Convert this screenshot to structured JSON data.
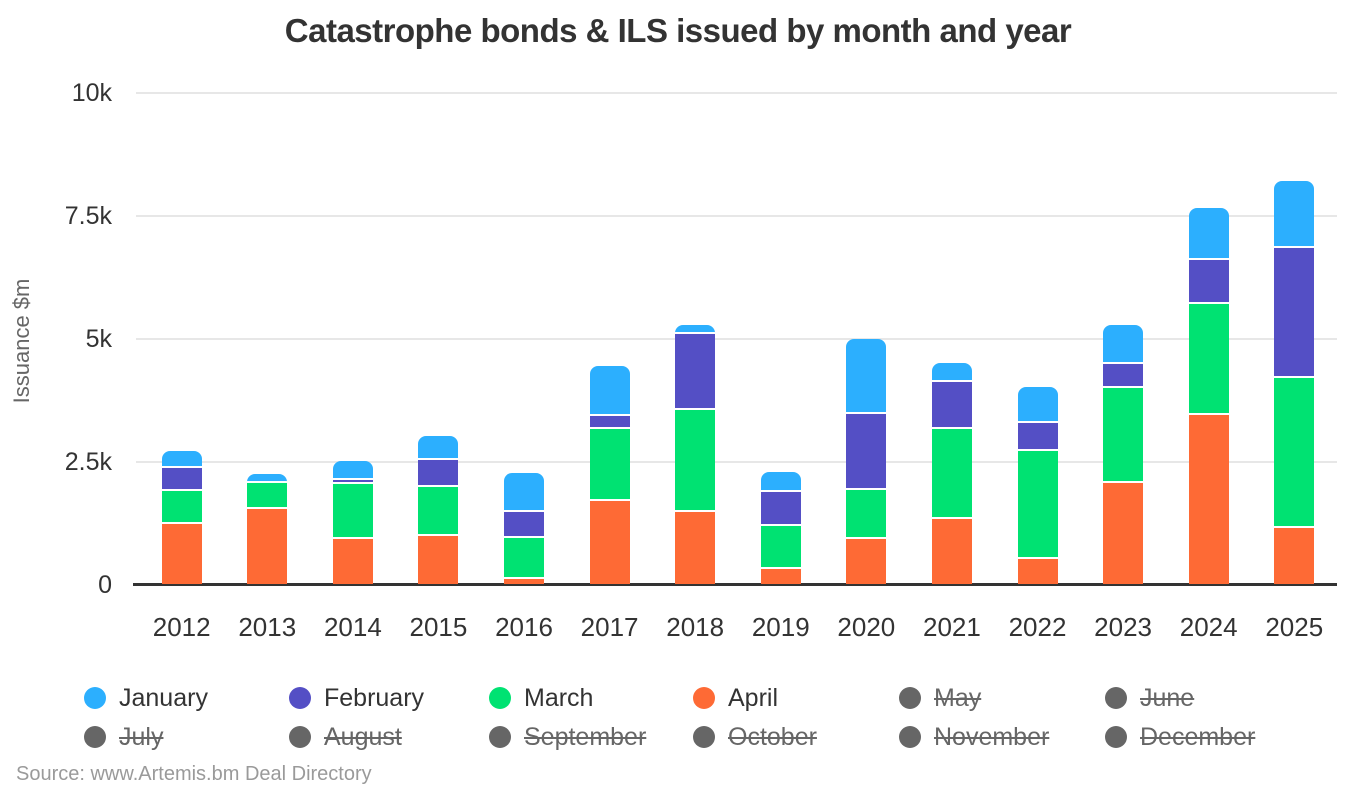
{
  "title": "Catastrophe bonds & ILS issued by month and year",
  "source": "Source: www.Artemis.bm Deal Directory",
  "colors": {
    "january": "#2CAFFE",
    "february": "#544FC5",
    "march": "#00E272",
    "april": "#FE6A35",
    "disabled_legend": "#666666",
    "grid": "#e7e7e7",
    "axis_line": "#333333",
    "text": "#333333",
    "muted_text": "#666666",
    "source_text": "#9a9a9a"
  },
  "chart_data": {
    "type": "bar",
    "stacked": true,
    "title": "Catastrophe bonds & ILS issued by month and year",
    "xlabel": "",
    "ylabel": "Issuance $m",
    "ylim": [
      0,
      10000
    ],
    "yticks": [
      0,
      2500,
      5000,
      7500,
      10000
    ],
    "ytick_labels": [
      "0",
      "2.5k",
      "5k",
      "7.5k",
      "10k"
    ],
    "grid": true,
    "legend_position": "bottom",
    "categories": [
      "2012",
      "2013",
      "2014",
      "2015",
      "2016",
      "2017",
      "2018",
      "2019",
      "2020",
      "2021",
      "2022",
      "2023",
      "2024",
      "2025"
    ],
    "series": [
      {
        "name": "January",
        "color": "#2CAFFE",
        "values": [
          345,
          190,
          390,
          490,
          790,
          1020,
          190,
          410,
          1515,
          390,
          730,
          800,
          1060,
          1355
        ]
      },
      {
        "name": "February",
        "color": "#544FC5",
        "values": [
          475,
          0,
          90,
          540,
          540,
          260,
          1545,
          690,
          1545,
          950,
          565,
          495,
          885,
          2650
        ]
      },
      {
        "name": "March",
        "color": "#00E272",
        "values": [
          655,
          530,
          1120,
          995,
          825,
          1460,
          2075,
          880,
          1000,
          1820,
          2190,
          1930,
          2265,
          3055
        ]
      },
      {
        "name": "April",
        "color": "#FE6A35",
        "values": [
          1240,
          1530,
          920,
          990,
          120,
          1700,
          1475,
          310,
          930,
          1340,
          525,
          2060,
          3450,
          1145
        ]
      }
    ],
    "stack_order_bottom_to_top": [
      "April",
      "March",
      "February",
      "January"
    ],
    "legend": {
      "months": [
        {
          "label": "January",
          "color": "#2CAFFE",
          "disabled": false
        },
        {
          "label": "February",
          "color": "#544FC5",
          "disabled": false
        },
        {
          "label": "March",
          "color": "#00E272",
          "disabled": false
        },
        {
          "label": "April",
          "color": "#FE6A35",
          "disabled": false
        },
        {
          "label": "May",
          "color": "#666666",
          "disabled": true
        },
        {
          "label": "June",
          "color": "#666666",
          "disabled": true
        },
        {
          "label": "July",
          "color": "#666666",
          "disabled": true
        },
        {
          "label": "August",
          "color": "#666666",
          "disabled": true
        },
        {
          "label": "September",
          "color": "#666666",
          "disabled": true
        },
        {
          "label": "October",
          "color": "#666666",
          "disabled": true
        },
        {
          "label": "November",
          "color": "#666666",
          "disabled": true
        },
        {
          "label": "December",
          "color": "#666666",
          "disabled": true
        }
      ]
    }
  }
}
